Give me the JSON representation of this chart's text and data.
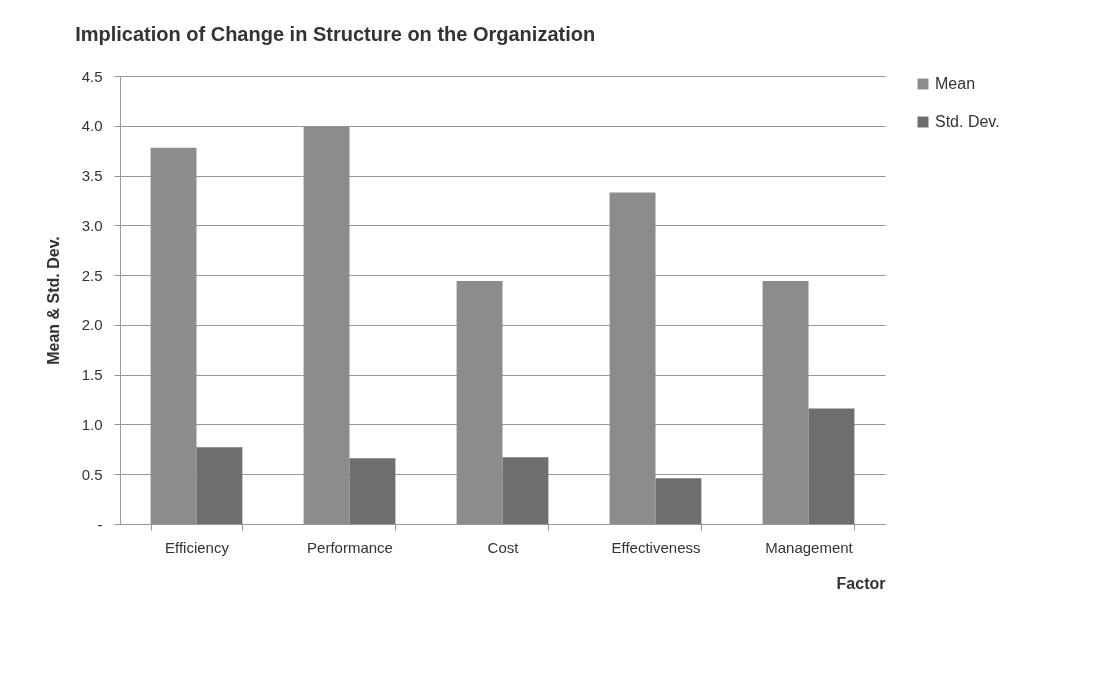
{
  "chart_data": {
    "type": "bar",
    "title": "Implication of Change in Structure on the Organization",
    "xlabel": "Factor",
    "ylabel": "Mean & Std. Dev.",
    "categories": [
      "Efficiency",
      "Performance",
      "Cost",
      "Effectiveness",
      "Management"
    ],
    "series": [
      {
        "name": "Mean",
        "color": "#8c8c8c",
        "values": [
          3.78,
          3.99,
          2.44,
          3.33,
          2.44
        ]
      },
      {
        "name": "Std. Dev.",
        "color": "#6e6e6e",
        "values": [
          0.77,
          0.66,
          0.67,
          0.46,
          1.16
        ]
      }
    ],
    "ylim": [
      0,
      4.5
    ],
    "yticks": [
      {
        "value": 0,
        "label": "-"
      },
      {
        "value": 0.5,
        "label": "0.5"
      },
      {
        "value": 1,
        "label": "1.0"
      },
      {
        "value": 1.5,
        "label": "1.5"
      },
      {
        "value": 2,
        "label": "2.0"
      },
      {
        "value": 2.5,
        "label": "2.5"
      },
      {
        "value": 3,
        "label": "3.0"
      },
      {
        "value": 3.5,
        "label": "3.5"
      },
      {
        "value": 4,
        "label": "4.0"
      },
      {
        "value": 4.5,
        "label": "4.5"
      }
    ],
    "grid": "y",
    "legend": "right"
  }
}
